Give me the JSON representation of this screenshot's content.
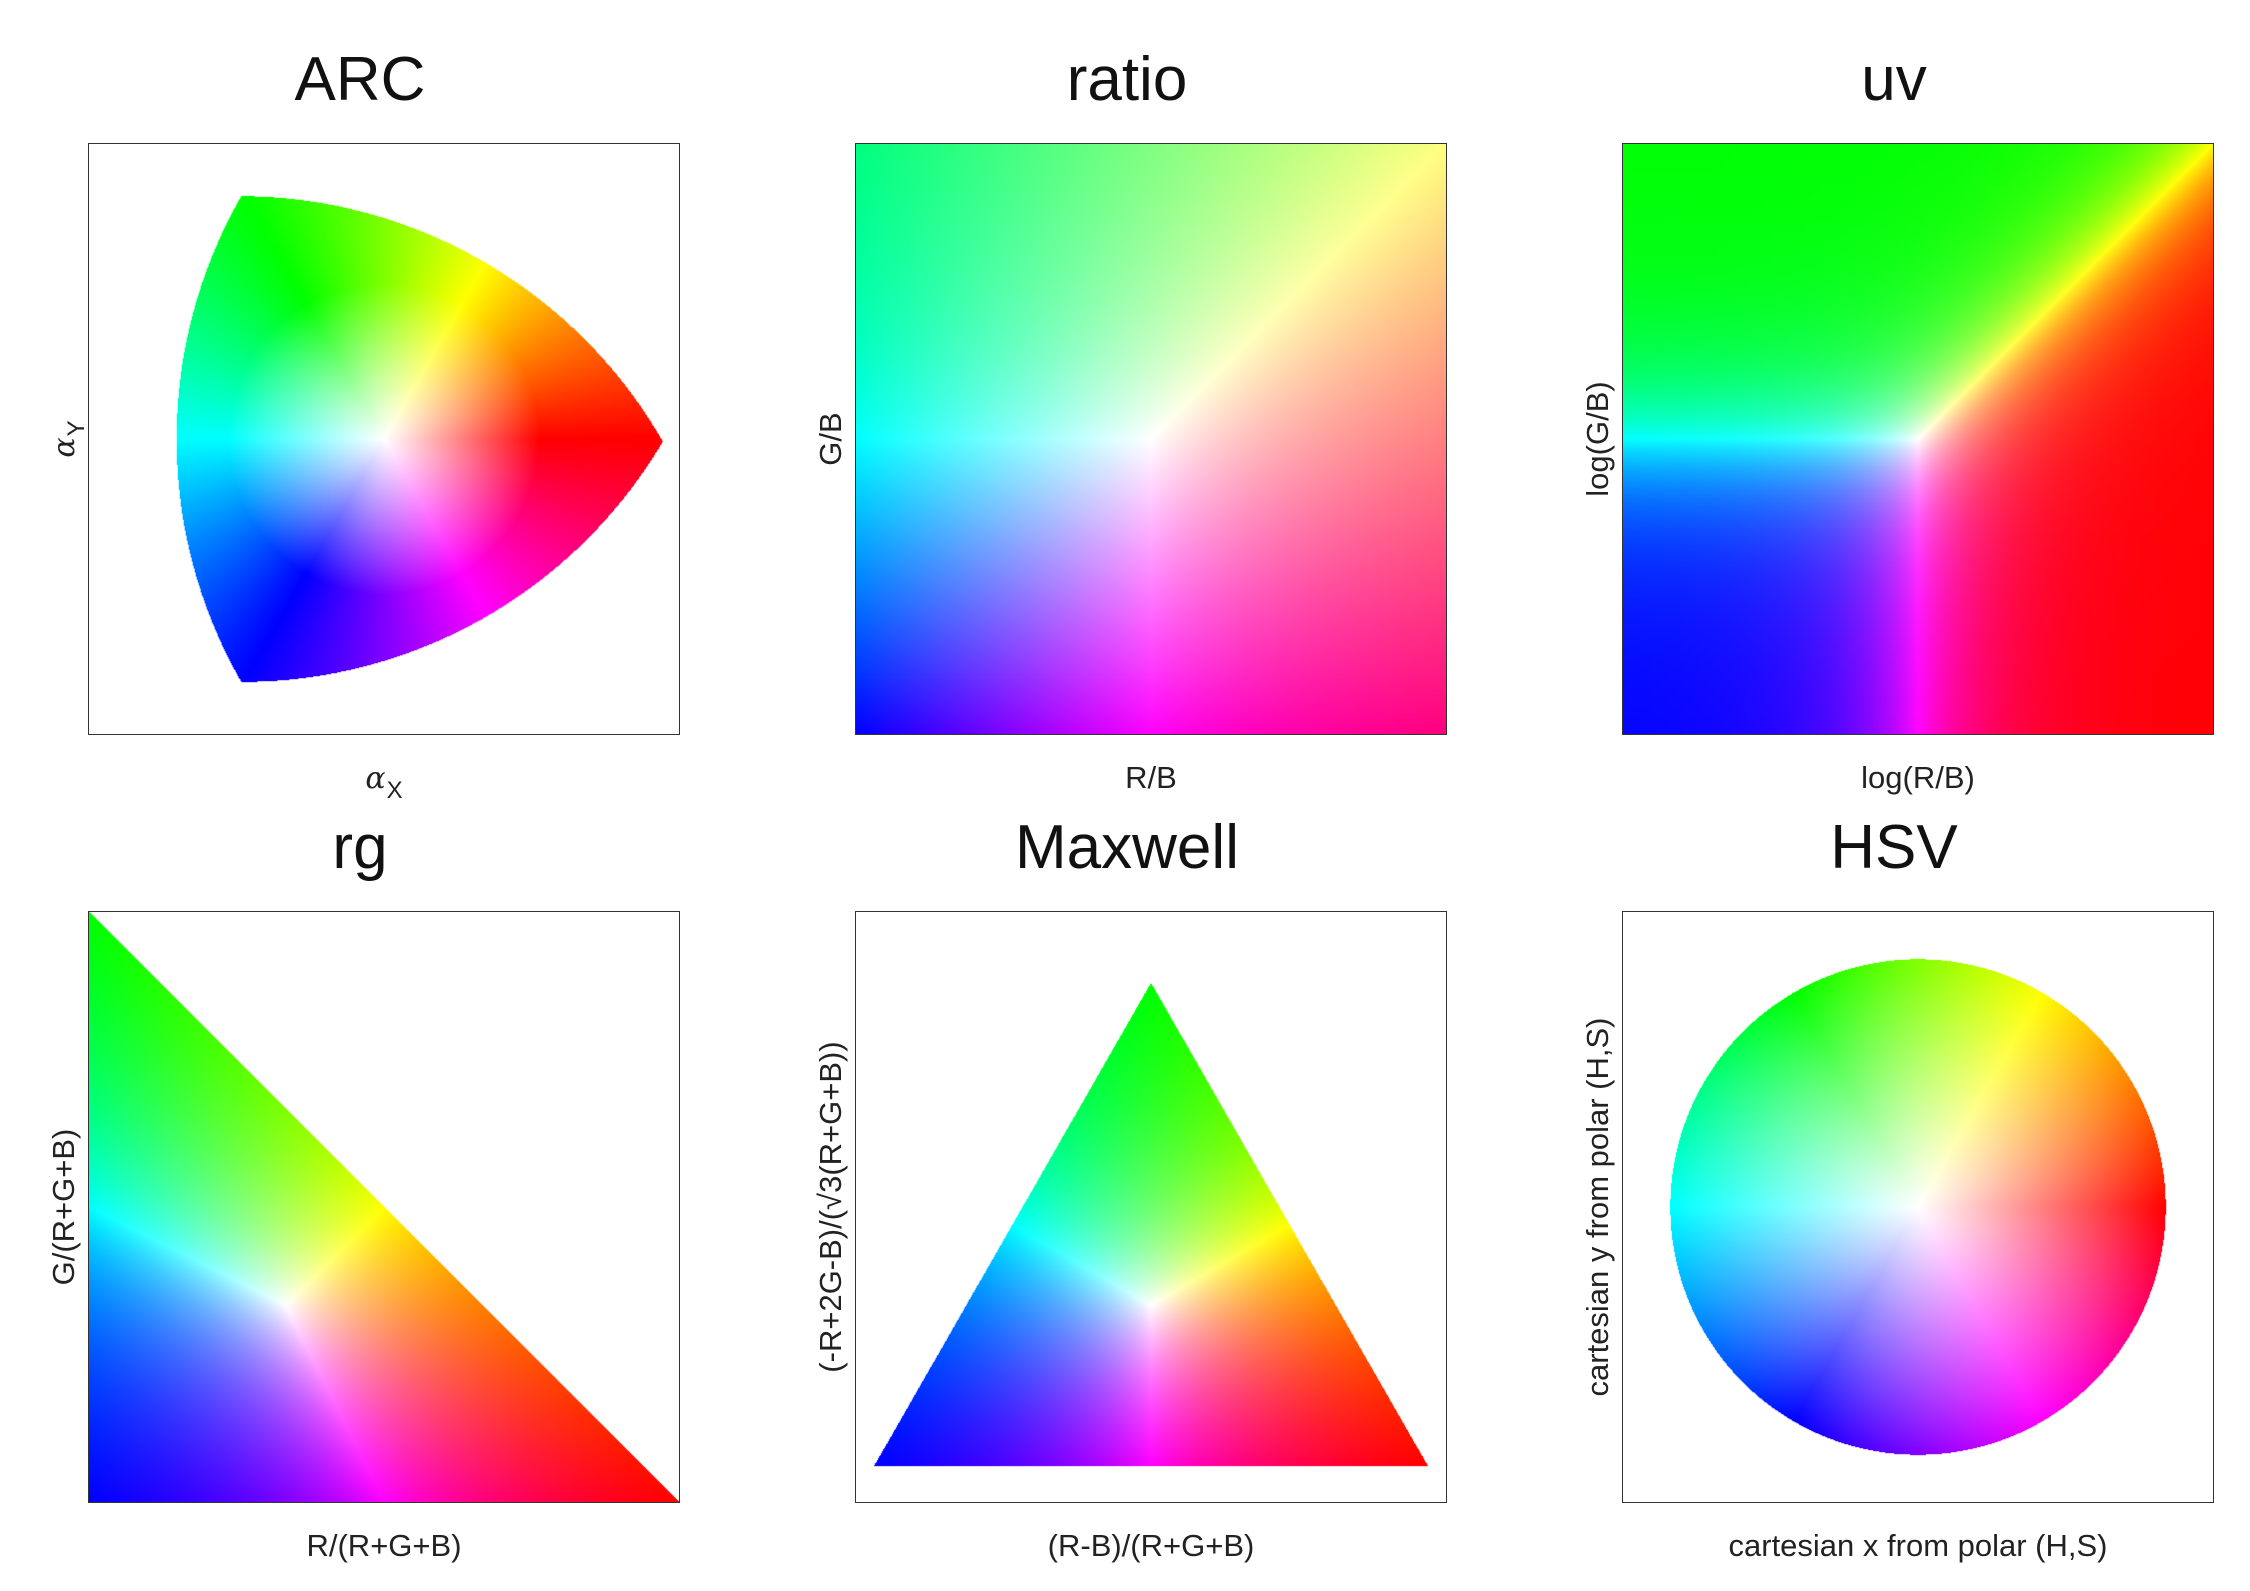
{
  "panels": [
    {
      "title": "ARC",
      "xlabel_symbol": "α",
      "xlabel_sub": "X",
      "ylabel_symbol": "α",
      "ylabel_sub": "Y",
      "shape": "arc-triangle"
    },
    {
      "title": "ratio",
      "xlabel": "R/B",
      "ylabel": "G/B",
      "shape": "square"
    },
    {
      "title": "uv",
      "xlabel": "log(R/B)",
      "ylabel": "log(G/B)",
      "shape": "square-log"
    },
    {
      "title": "rg",
      "xlabel": "R/(R+G+B)",
      "ylabel": "G/(R+G+B)",
      "shape": "right-triangle"
    },
    {
      "title": "Maxwell",
      "xlabel": "(R-B)/(R+G+B)",
      "ylabel": "(-R+2G-B)/(√3(R+G+B))",
      "shape": "equilateral-triangle"
    },
    {
      "title": "HSV",
      "xlabel": "cartesian x from polar (H,S)",
      "ylabel": "cartesian y from polar (H,S)",
      "shape": "disc"
    }
  ],
  "colors": {
    "frame": "#333333",
    "background": "#ffffff",
    "red": "#ff0000",
    "green": "#00ff00",
    "blue": "#0000ff",
    "center": "#ffffff"
  }
}
